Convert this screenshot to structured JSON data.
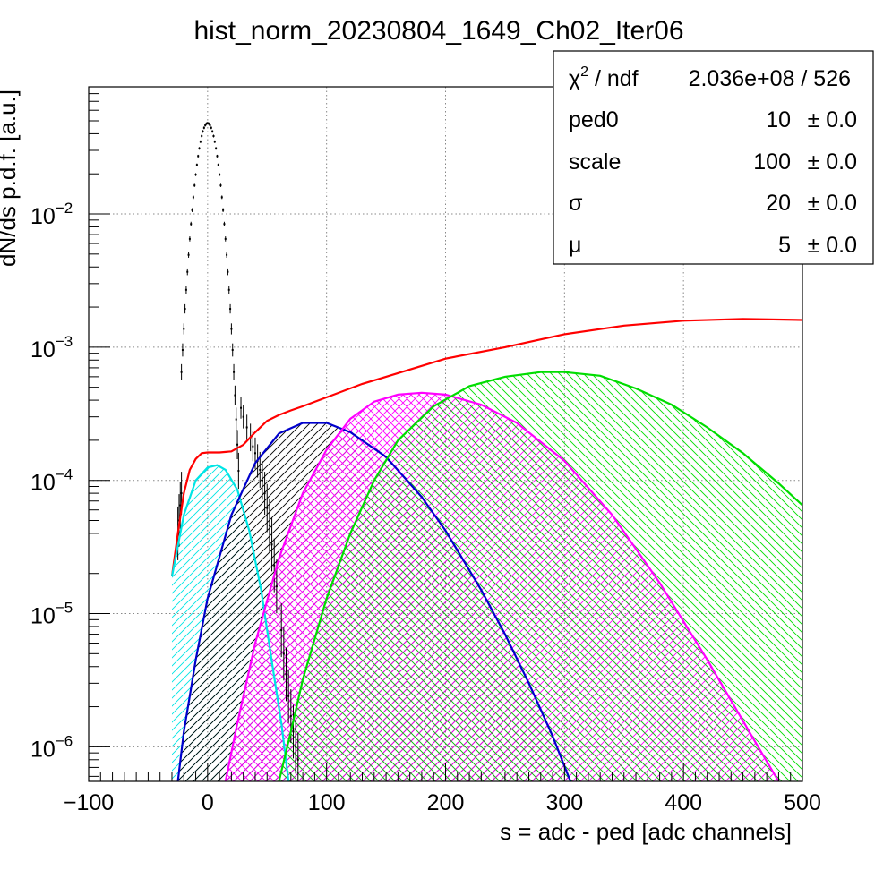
{
  "chart_data": {
    "type": "line",
    "title": "hist_norm_20230804_1649_Ch02_Iter06",
    "xlabel": "s = adc - ped [adc channels]",
    "ylabel": "dN/ds p.d.f. [a.u.]",
    "xlim": [
      -100,
      500
    ],
    "ylim": [
      5.5e-07,
      0.09
    ],
    "yscale": "log",
    "grid": true,
    "x_ticks": [
      {
        "value": -100,
        "label": "−100"
      },
      {
        "value": 0,
        "label": "0"
      },
      {
        "value": 100,
        "label": "100"
      },
      {
        "value": 200,
        "label": "200"
      },
      {
        "value": 300,
        "label": "300"
      },
      {
        "value": 400,
        "label": "400"
      },
      {
        "value": 500,
        "label": "500"
      }
    ],
    "y_ticks": [
      {
        "value": 1e-06,
        "base": "10",
        "exp": "−6"
      },
      {
        "value": 1e-05,
        "base": "10",
        "exp": "−5"
      },
      {
        "value": 0.0001,
        "base": "10",
        "exp": "−4"
      },
      {
        "value": 0.001,
        "base": "10",
        "exp": "−3"
      },
      {
        "value": 0.01,
        "base": "10",
        "exp": "−2"
      }
    ],
    "histogram": {
      "color": "#000000",
      "gauss_peak": {
        "center": 0,
        "amplitude": 0.048,
        "sigma": 7.5,
        "x_range": [
          -22,
          26
        ]
      },
      "tail_points": [
        [
          28,
          0.00035
        ],
        [
          30,
          0.0003
        ],
        [
          33,
          0.00025
        ],
        [
          36,
          0.00021
        ],
        [
          38,
          0.00018
        ],
        [
          40,
          0.00016
        ],
        [
          42,
          0.00014
        ],
        [
          44,
          0.00012
        ],
        [
          46,
          0.0001
        ],
        [
          48,
          8e-05
        ],
        [
          50,
          6.2e-05
        ],
        [
          52,
          4.6e-05
        ],
        [
          54,
          3.3e-05
        ],
        [
          56,
          2.3e-05
        ],
        [
          58,
          1.6e-05
        ],
        [
          60,
          1.1e-05
        ],
        [
          62,
          7.5e-06
        ],
        [
          64,
          5e-06
        ],
        [
          66,
          3.5e-06
        ],
        [
          68,
          2.4e-06
        ],
        [
          70,
          1.7e-06
        ],
        [
          72,
          1.3e-06
        ],
        [
          74,
          1e-06
        ],
        [
          76,
          8e-07
        ]
      ],
      "left_points": [
        [
          -25,
          4e-05
        ],
        [
          -24,
          5e-05
        ],
        [
          -23,
          6.5e-05
        ],
        [
          -22,
          8e-05
        ]
      ]
    },
    "series": [
      {
        "color": "#ff0000",
        "hatch": "none",
        "points": [
          [
            -30,
            1.9e-05
          ],
          [
            -25,
            4e-05
          ],
          [
            -20,
            8e-05
          ],
          [
            -15,
            0.00012
          ],
          [
            -10,
            0.000145
          ],
          [
            -5,
            0.00016
          ],
          [
            0,
            0.000162
          ],
          [
            10,
            0.000162
          ],
          [
            20,
            0.000165
          ],
          [
            30,
            0.000185
          ],
          [
            40,
            0.00023
          ],
          [
            50,
            0.00028
          ],
          [
            60,
            0.00031
          ],
          [
            70,
            0.000335
          ],
          [
            80,
            0.00036
          ],
          [
            100,
            0.00042
          ],
          [
            130,
            0.00053
          ],
          [
            150,
            0.0006
          ],
          [
            200,
            0.00082
          ],
          [
            250,
            0.001
          ],
          [
            300,
            0.00125
          ],
          [
            350,
            0.00145
          ],
          [
            400,
            0.00158
          ],
          [
            450,
            0.00163
          ],
          [
            500,
            0.0016
          ]
        ]
      },
      {
        "color": "#00e5e5",
        "hatch": "left",
        "points": [
          [
            -30,
            1.9e-05
          ],
          [
            -20,
            5.5e-05
          ],
          [
            -10,
            0.0001
          ],
          [
            0,
            0.000125
          ],
          [
            8,
            0.00013
          ],
          [
            15,
            0.00012
          ],
          [
            25,
            8.5e-05
          ],
          [
            35,
            4.2e-05
          ],
          [
            45,
            1.5e-05
          ],
          [
            55,
            3.8e-06
          ],
          [
            62,
            1.5e-06
          ],
          [
            68,
            5.5e-07
          ]
        ]
      },
      {
        "color": "#0000cc",
        "hatch": "left",
        "points": [
          [
            -25,
            5.5e-07
          ],
          [
            -20,
            1.3e-06
          ],
          [
            -10,
            4.5e-06
          ],
          [
            0,
            1.3e-05
          ],
          [
            20,
            5.5e-05
          ],
          [
            40,
            0.000135
          ],
          [
            60,
            0.000225
          ],
          [
            80,
            0.00027
          ],
          [
            100,
            0.00027
          ],
          [
            120,
            0.00023
          ],
          [
            150,
            0.00015
          ],
          [
            180,
            7.5e-05
          ],
          [
            200,
            4.2e-05
          ],
          [
            230,
            1.5e-05
          ],
          [
            250,
            7e-06
          ],
          [
            270,
            3e-06
          ],
          [
            290,
            1.2e-06
          ],
          [
            305,
            5.5e-07
          ]
        ]
      },
      {
        "color": "#ff00ff",
        "hatch": "both",
        "points": [
          [
            15,
            5.5e-07
          ],
          [
            25,
            1.5e-06
          ],
          [
            40,
            6e-06
          ],
          [
            60,
            2.6e-05
          ],
          [
            80,
            8e-05
          ],
          [
            100,
            0.00017
          ],
          [
            120,
            0.00029
          ],
          [
            140,
            0.00039
          ],
          [
            160,
            0.00044
          ],
          [
            180,
            0.000455
          ],
          [
            200,
            0.00044
          ],
          [
            230,
            0.00037
          ],
          [
            260,
            0.00027
          ],
          [
            300,
            0.00014
          ],
          [
            340,
            5.5e-05
          ],
          [
            380,
            1.7e-05
          ],
          [
            420,
            4.5e-06
          ],
          [
            460,
            1.1e-06
          ],
          [
            480,
            5.5e-07
          ]
        ]
      },
      {
        "color": "#00dd00",
        "hatch": "right",
        "points": [
          [
            60,
            5.5e-07
          ],
          [
            70,
            1.3e-06
          ],
          [
            80,
            3.2e-06
          ],
          [
            100,
            1.3e-05
          ],
          [
            120,
            4e-05
          ],
          [
            140,
            0.0001
          ],
          [
            160,
            0.0002
          ],
          [
            190,
            0.00036
          ],
          [
            220,
            0.00051
          ],
          [
            250,
            0.0006
          ],
          [
            280,
            0.00065
          ],
          [
            300,
            0.00065
          ],
          [
            330,
            0.00061
          ],
          [
            360,
            0.00049
          ],
          [
            390,
            0.00037
          ],
          [
            420,
            0.00025
          ],
          [
            450,
            0.00016
          ],
          [
            480,
            9.5e-05
          ],
          [
            500,
            6.5e-05
          ]
        ]
      }
    ]
  },
  "stats_box": {
    "chi2_symbol": "χ",
    "chi2_sup": "2",
    "chi2_rest": " / ndf",
    "chi2_value": "2.036e+08 / 526",
    "rows": [
      {
        "name": "ped0",
        "value": "10",
        "error": "± 0.0"
      },
      {
        "name": "scale",
        "value": "100",
        "error": "± 0.0"
      },
      {
        "name": "σ",
        "value": "20",
        "error": "± 0.0"
      },
      {
        "name": "μ",
        "value": "5",
        "error": "± 0.0"
      }
    ]
  }
}
